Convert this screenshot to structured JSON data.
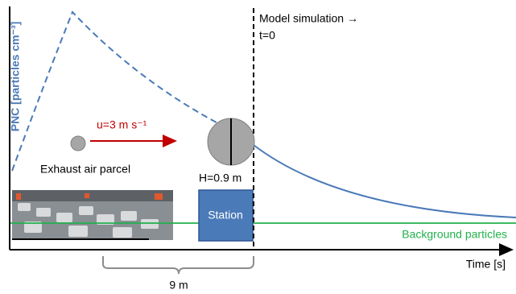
{
  "axis": {
    "y_label": "PNC [particles cm⁻³]",
    "x_label": "Time [s]"
  },
  "labels": {
    "model": "Model simulation →",
    "t0": "t=0",
    "wind": "u=3 m s⁻¹",
    "parcel": "Exhaust air parcel",
    "height": "H=0.9 m",
    "station": "Station",
    "background": "Background particles",
    "distance": "9 m"
  }
}
